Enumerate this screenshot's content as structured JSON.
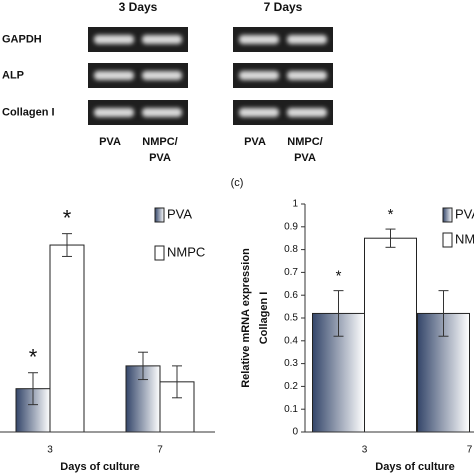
{
  "gel": {
    "panels": [
      "3 Days",
      "7 Days"
    ],
    "rows": [
      "GAPDH",
      "ALP",
      "Collagen I"
    ],
    "lanes": [
      [
        "PVA"
      ],
      [
        "NMPC/",
        "PVA"
      ]
    ]
  },
  "panel_label": "(c)",
  "chart_data": [
    {
      "type": "bar",
      "categories": [
        "3",
        "7"
      ],
      "xlabel": "Days of culture",
      "ylim": [
        0,
        1
      ],
      "series": [
        {
          "name": "PVA",
          "color": "#34466a",
          "values": [
            0.19,
            0.29
          ],
          "errors": [
            0.07,
            0.06
          ]
        },
        {
          "name": "NMPC",
          "color": "#ffffff",
          "values": [
            0.82,
            0.22
          ],
          "errors": [
            0.05,
            0.07
          ]
        }
      ],
      "annotations": [
        "*",
        "*"
      ]
    },
    {
      "type": "bar",
      "categories": [
        "3",
        "7"
      ],
      "xlabel": "Days of culture",
      "ylabel": [
        "Relative mRNA expression",
        "Collagen I"
      ],
      "ylim": [
        0,
        1
      ],
      "yticks": [
        0,
        0.1,
        0.2,
        0.3,
        0.4,
        0.5,
        0.6,
        0.7,
        0.8,
        0.9,
        1
      ],
      "series": [
        {
          "name": "PVA",
          "color": "#34466a",
          "values": [
            0.52,
            0.52
          ],
          "errors": [
            0.1,
            0.1
          ]
        },
        {
          "name": "NMPC",
          "color": "#ffffff",
          "values": [
            0.85,
            null
          ],
          "errors": [
            0.04,
            null
          ]
        }
      ],
      "annotations": [
        "*",
        "*"
      ]
    }
  ]
}
